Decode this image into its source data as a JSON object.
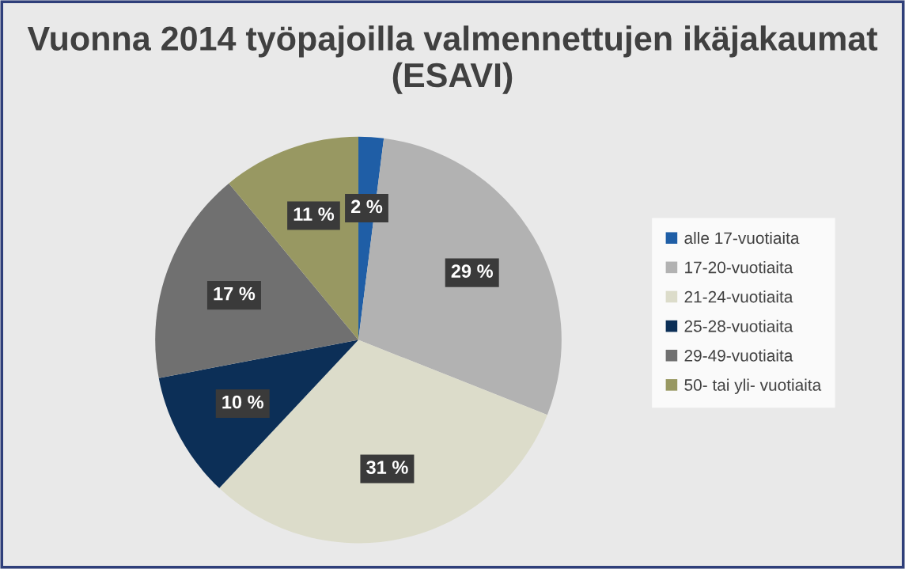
{
  "chart_data": {
    "type": "pie",
    "title": "Vuonna 2014 työpajoilla valmennettujen ikäjakaumat (ESAVI)",
    "categories": [
      "alle 17-vuotiaita",
      "17-20-vuotiaita",
      "21-24-vuotiaita",
      "25-28-vuotiaita",
      "29-49-vuotiaita",
      "50- tai yli- vuotiaita"
    ],
    "values": [
      2,
      29,
      31,
      10,
      17,
      11
    ],
    "colors": [
      "#1f5ea6",
      "#b2b2b2",
      "#dcdcca",
      "#0c2f57",
      "#707070",
      "#989862"
    ],
    "value_labels": [
      "2 %",
      "29 %",
      "31 %",
      "10 %",
      "17 %",
      "11 %"
    ],
    "legend": "right"
  }
}
